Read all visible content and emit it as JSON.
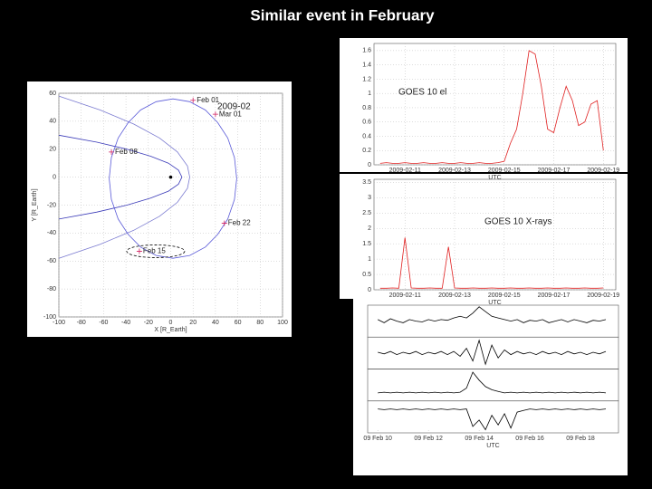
{
  "title": "Similar event in February",
  "chart_data": [
    {
      "type": "line",
      "annotation": "2009-02",
      "xlabel": "X [R_Earth]",
      "ylabel": "Y [R_Earth]",
      "xlim": [
        -100,
        100
      ],
      "ylim": [
        -100,
        60
      ],
      "grid": true,
      "xticks": [
        -100,
        -80,
        -60,
        -40,
        -20,
        0,
        20,
        40,
        60,
        80,
        100
      ],
      "yticks": [
        -100,
        -80,
        -60,
        -40,
        -20,
        0,
        20,
        40,
        60
      ],
      "series": [
        {
          "color": "#7a7ad0",
          "x": [
            -100,
            -63,
            -33,
            -10,
            6,
            15,
            17,
            15,
            6,
            -10,
            -33,
            -63,
            -100
          ],
          "values": [
            -58,
            -48,
            -38,
            -28,
            -18,
            -8,
            0,
            8,
            18,
            28,
            38,
            48,
            58
          ]
        },
        {
          "color": "#3a3ab8",
          "x": [
            -100,
            -66,
            -39,
            -18,
            -2,
            7,
            10,
            7,
            -2,
            -18,
            -39,
            -66,
            -100
          ],
          "values": [
            -30,
            -25,
            -20,
            -15,
            -10,
            -5,
            0,
            5,
            10,
            15,
            20,
            25,
            30
          ]
        },
        {
          "color": "#5a5ad8",
          "x": [
            59,
            57,
            51,
            42,
            31,
            17,
            2,
            -13,
            -27,
            -38,
            -47,
            -53,
            -55,
            -53,
            -47,
            -38,
            -27,
            -13,
            2,
            17,
            31,
            42,
            51,
            57,
            59
          ],
          "values": [
            -1,
            14,
            28,
            39,
            48,
            54,
            56,
            54,
            48,
            39,
            28,
            14,
            -1,
            -16,
            -30,
            -41,
            -50,
            -56,
            -58,
            -56,
            -50,
            -41,
            -30,
            -16,
            -1
          ]
        }
      ],
      "points": {
        "color": "#d02060",
        "x": [
          20,
          40,
          -53,
          48,
          -28,
          0
        ],
        "values": [
          55,
          45,
          18,
          -33,
          -53,
          0
        ],
        "labels": [
          "Feb 01",
          "Mar 01",
          "Feb 08",
          "Feb 22",
          "Feb 15",
          null
        ]
      }
    },
    {
      "type": "line",
      "title": "GOES 10 el",
      "xlabel": "UTC",
      "xlim": [
        9.75,
        19.5
      ],
      "ylim": [
        0,
        1.7
      ],
      "xticks": [
        {
          "value": 11,
          "label": "2009-02-11"
        },
        {
          "value": 13,
          "label": "2009-02-13"
        },
        {
          "value": 15,
          "label": "2009-02-15"
        },
        {
          "value": 17,
          "label": "2009-02-17"
        },
        {
          "value": 19,
          "label": "2009-02-19"
        }
      ],
      "yticks": [
        0,
        0.2,
        0.4,
        0.6,
        0.8,
        1,
        1.2,
        1.4,
        1.6
      ],
      "grid": true,
      "x": [
        10,
        10.25,
        10.5,
        10.75,
        11,
        11.25,
        11.5,
        11.75,
        12,
        12.25,
        12.5,
        12.75,
        13,
        13.25,
        13.5,
        13.75,
        14,
        14.25,
        14.5,
        14.75,
        15,
        15.25,
        15.5,
        15.75,
        16,
        16.25,
        16.5,
        16.75,
        17,
        17.25,
        17.5,
        17.75,
        18,
        18.25,
        18.5,
        18.75,
        19
      ],
      "series": [
        {
          "color": "#e02020",
          "values": [
            0.02,
            0.03,
            0.02,
            0.02,
            0.03,
            0.02,
            0.02,
            0.03,
            0.02,
            0.02,
            0.03,
            0.02,
            0.02,
            0.03,
            0.02,
            0.02,
            0.03,
            0.02,
            0.02,
            0.03,
            0.05,
            0.3,
            0.5,
            1.0,
            1.6,
            1.55,
            1.1,
            0.5,
            0.45,
            0.8,
            1.1,
            0.9,
            0.55,
            0.6,
            0.85,
            0.9,
            0.2
          ]
        }
      ]
    },
    {
      "type": "line",
      "title": "GOES 10 X-rays",
      "xlabel": "UTC",
      "xlim": [
        9.75,
        19.5
      ],
      "ylim": [
        0,
        3.6
      ],
      "xticks": [
        {
          "value": 11,
          "label": "2009-02-11"
        },
        {
          "value": 13,
          "label": "2009-02-13"
        },
        {
          "value": 15,
          "label": "2009-02-15"
        },
        {
          "value": 17,
          "label": "2009-02-17"
        },
        {
          "value": 19,
          "label": "2009-02-19"
        }
      ],
      "yticks": [
        0,
        0.5,
        1,
        1.5,
        2,
        2.5,
        3,
        3.5
      ],
      "grid": true,
      "x": [
        10,
        10.25,
        10.5,
        10.75,
        11,
        11.25,
        11.5,
        11.75,
        12,
        12.25,
        12.5,
        12.75,
        13,
        13.25,
        13.5,
        13.75,
        14,
        14.25,
        14.5,
        14.75,
        15,
        15.25,
        15.5,
        15.75,
        16,
        16.25,
        16.5,
        16.75,
        17,
        17.25,
        17.5,
        17.75,
        18,
        18.25,
        18.5,
        18.75,
        19
      ],
      "series": [
        {
          "color": "#e02020",
          "values": [
            0.05,
            0.05,
            0.06,
            0.05,
            1.7,
            0.06,
            0.05,
            0.05,
            0.06,
            0.05,
            0.05,
            1.4,
            0.06,
            0.05,
            0.05,
            0.06,
            0.05,
            0.05,
            0.06,
            0.05,
            0.05,
            0.06,
            0.05,
            0.05,
            0.06,
            0.05,
            0.05,
            0.06,
            0.05,
            0.05,
            0.06,
            0.05,
            0.05,
            0.06,
            0.05,
            0.05,
            0.06
          ]
        }
      ]
    },
    {
      "type": "line",
      "stacked_panels": true,
      "xlabel": "UTC",
      "xlim": [
        9.6,
        19.5
      ],
      "ylim": [
        -1,
        1
      ],
      "xticks": [
        {
          "value": 10,
          "label": "09 Feb 10"
        },
        {
          "value": 12,
          "label": "09 Feb 12"
        },
        {
          "value": 14,
          "label": "09 Feb 14"
        },
        {
          "value": 16,
          "label": "09 Feb 16"
        },
        {
          "value": 18,
          "label": "09 Feb 18"
        }
      ],
      "x": [
        10,
        10.25,
        10.5,
        10.75,
        11,
        11.25,
        11.5,
        11.75,
        12,
        12.25,
        12.5,
        12.75,
        13,
        13.25,
        13.5,
        13.75,
        14,
        14.25,
        14.5,
        14.75,
        15,
        15.25,
        15.5,
        15.75,
        16,
        16.25,
        16.5,
        16.75,
        17,
        17.25,
        17.5,
        17.75,
        18,
        18.25,
        18.5,
        18.75,
        19
      ],
      "series": [
        {
          "color": "#000000",
          "values": [
            0.1,
            -0.1,
            0.15,
            0,
            -0.1,
            0.1,
            0,
            -0.05,
            0.1,
            0,
            0.1,
            0.05,
            0.2,
            0.3,
            0.2,
            0.5,
            0.9,
            0.6,
            0.3,
            0.2,
            0.1,
            0,
            0.1,
            -0.1,
            0.05,
            0,
            0.1,
            -0.1,
            0,
            0.1,
            -0.05,
            0.1,
            0,
            -0.1,
            0.05,
            0,
            0.1
          ]
        },
        {
          "color": "#000000",
          "values": [
            0.05,
            -0.05,
            0.1,
            -0.1,
            0.05,
            -0.05,
            0.1,
            -0.1,
            0.05,
            -0.05,
            0.1,
            -0.1,
            0.1,
            -0.2,
            0.3,
            -0.5,
            0.8,
            -0.7,
            0.5,
            -0.3,
            0.2,
            -0.1,
            0.1,
            -0.05,
            0.05,
            -0.1,
            0.1,
            -0.05,
            0.05,
            -0.1,
            0.1,
            -0.05,
            0.05,
            -0.1,
            0.05,
            -0.05,
            0.1
          ]
        },
        {
          "color": "#000000",
          "values": [
            -0.5,
            -0.45,
            -0.5,
            -0.45,
            -0.5,
            -0.45,
            -0.5,
            -0.45,
            -0.5,
            -0.45,
            -0.5,
            -0.45,
            -0.5,
            -0.45,
            -0.2,
            0.8,
            0.3,
            -0.1,
            -0.3,
            -0.4,
            -0.5,
            -0.45,
            -0.5,
            -0.45,
            -0.5,
            -0.45,
            -0.5,
            -0.45,
            -0.5,
            -0.45,
            -0.5,
            -0.45,
            -0.5,
            -0.45,
            -0.5,
            -0.45,
            -0.5
          ]
        },
        {
          "color": "#000000",
          "values": [
            0.5,
            0.45,
            0.5,
            0.45,
            0.5,
            0.45,
            0.5,
            0.45,
            0.5,
            0.45,
            0.5,
            0.45,
            0.5,
            0.45,
            0.5,
            -0.6,
            -0.2,
            -0.8,
            0.1,
            -0.5,
            0.2,
            -0.7,
            0.3,
            0.4,
            0.5,
            0.45,
            0.5,
            0.45,
            0.5,
            0.45,
            0.5,
            0.45,
            0.5,
            0.45,
            0.5,
            0.45,
            0.5
          ]
        }
      ]
    }
  ]
}
